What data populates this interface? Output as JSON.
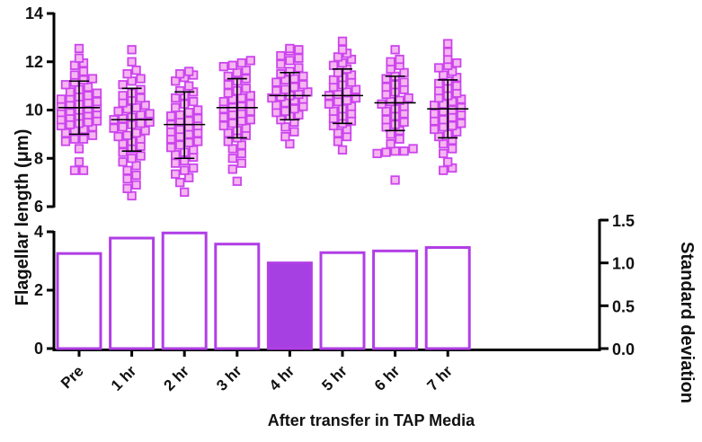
{
  "colors": {
    "marker_edge": "#cc44ee",
    "marker_fill": "#f6b6f0",
    "bar_edge": "#b13ee6",
    "bar_highlight_fill": "#a640e2",
    "axis": "#000000"
  },
  "chart_data": [
    {
      "type": "scatter",
      "subtype": "dot-plot with mean and SD error bars",
      "categories": [
        "Pre",
        "1 hr",
        "2 hr",
        "3 hr",
        "4 hr",
        "5 hr",
        "6 hr",
        "7 hr"
      ],
      "ylim": [
        6,
        14
      ],
      "yticks": [
        6,
        8,
        10,
        12,
        14
      ],
      "ylabel": "Flagellar length (µm)",
      "marker": "square",
      "summary": [
        {
          "category": "Pre",
          "mean": 10.1,
          "sd_low": 9.0,
          "sd_high": 11.2
        },
        {
          "category": "1 hr",
          "mean": 9.6,
          "sd_low": 8.3,
          "sd_high": 10.9
        },
        {
          "category": "2 hr",
          "mean": 9.4,
          "sd_low": 8.0,
          "sd_high": 10.75
        },
        {
          "category": "3 hr",
          "mean": 10.1,
          "sd_low": 8.85,
          "sd_high": 11.3
        },
        {
          "category": "4 hr",
          "mean": 10.6,
          "sd_low": 9.6,
          "sd_high": 11.55
        },
        {
          "category": "5 hr",
          "mean": 10.6,
          "sd_low": 9.45,
          "sd_high": 11.7
        },
        {
          "category": "6 hr",
          "mean": 10.3,
          "sd_low": 9.15,
          "sd_high": 11.4
        },
        {
          "category": "7 hr",
          "mean": 10.05,
          "sd_low": 8.85,
          "sd_high": 11.25
        }
      ],
      "points": [
        {
          "category": "Pre",
          "values": [
            12.55,
            12.15,
            11.95,
            11.85,
            11.6,
            11.45,
            11.3,
            11.25,
            11.15,
            11.05,
            10.95,
            10.85,
            10.75,
            10.7,
            10.6,
            10.55,
            10.5,
            10.45,
            10.35,
            10.3,
            10.25,
            10.2,
            10.15,
            10.1,
            10.05,
            10.0,
            9.95,
            9.9,
            9.85,
            9.8,
            9.75,
            9.7,
            9.6,
            9.55,
            9.5,
            9.45,
            9.4,
            9.35,
            9.3,
            9.2,
            9.15,
            9.05,
            8.95,
            8.8,
            8.8,
            8.7,
            8.4,
            7.85,
            7.5,
            7.5
          ]
        },
        {
          "category": "1 hr",
          "values": [
            12.5,
            12.0,
            11.65,
            11.5,
            11.3,
            11.2,
            11.05,
            10.85,
            10.7,
            10.6,
            10.5,
            10.4,
            10.3,
            10.2,
            10.1,
            10.05,
            9.95,
            9.85,
            9.8,
            9.7,
            9.65,
            9.6,
            9.5,
            9.45,
            9.4,
            9.3,
            9.25,
            9.15,
            9.05,
            8.95,
            8.9,
            8.8,
            8.7,
            8.6,
            8.5,
            8.4,
            8.25,
            8.1,
            8.0,
            7.85,
            7.7,
            7.5,
            7.3,
            7.15,
            6.9,
            6.75,
            6.45
          ]
        },
        {
          "category": "2 hr",
          "values": [
            11.6,
            11.5,
            11.45,
            11.35,
            11.2,
            11.0,
            10.8,
            10.75,
            10.6,
            10.5,
            10.35,
            10.25,
            10.1,
            10.0,
            9.9,
            9.8,
            9.75,
            9.65,
            9.55,
            9.5,
            9.4,
            9.35,
            9.3,
            9.2,
            9.1,
            9.05,
            9.0,
            8.9,
            8.8,
            8.7,
            8.65,
            8.55,
            8.45,
            8.35,
            8.25,
            8.15,
            8.05,
            7.9,
            7.8,
            7.6,
            7.5,
            7.35,
            7.2,
            7.0,
            6.6
          ]
        },
        {
          "category": "3 hr",
          "values": [
            12.05,
            11.95,
            11.85,
            11.8,
            11.65,
            11.55,
            11.4,
            11.3,
            11.2,
            11.05,
            10.9,
            10.8,
            10.7,
            10.6,
            10.5,
            10.45,
            10.35,
            10.25,
            10.15,
            10.1,
            10.05,
            9.95,
            9.85,
            9.8,
            9.7,
            9.6,
            9.55,
            9.45,
            9.35,
            9.25,
            9.15,
            9.05,
            8.95,
            8.85,
            8.7,
            8.55,
            8.4,
            8.2,
            8.0,
            7.8,
            7.55,
            7.05
          ]
        },
        {
          "category": "4 hr",
          "values": [
            12.55,
            12.5,
            12.45,
            12.25,
            12.15,
            12.05,
            11.9,
            11.75,
            11.6,
            11.5,
            11.4,
            11.3,
            11.25,
            11.15,
            11.05,
            10.95,
            10.85,
            10.8,
            10.75,
            10.65,
            10.6,
            10.55,
            10.5,
            10.45,
            10.4,
            10.3,
            10.2,
            10.15,
            10.05,
            9.95,
            9.9,
            9.8,
            9.75,
            9.6,
            9.5,
            9.3,
            9.1,
            8.9,
            8.6
          ]
        },
        {
          "category": "5 hr",
          "values": [
            12.85,
            12.5,
            12.35,
            12.2,
            12.1,
            11.95,
            11.85,
            11.7,
            11.55,
            11.45,
            11.35,
            11.25,
            11.15,
            11.05,
            10.95,
            10.85,
            10.75,
            10.65,
            10.6,
            10.5,
            10.4,
            10.35,
            10.25,
            10.15,
            10.05,
            9.95,
            9.85,
            9.75,
            9.65,
            9.55,
            9.45,
            9.35,
            9.2,
            9.05,
            8.9,
            8.7,
            8.35
          ]
        },
        {
          "category": "6 hr",
          "values": [
            12.5,
            12.1,
            12.0,
            11.85,
            11.7,
            11.55,
            11.4,
            11.3,
            11.15,
            11.05,
            10.95,
            10.85,
            10.75,
            10.65,
            10.5,
            10.4,
            10.35,
            10.25,
            10.15,
            10.05,
            9.95,
            9.85,
            9.75,
            9.6,
            9.5,
            9.4,
            9.3,
            9.15,
            9.0,
            8.8,
            8.6,
            8.4,
            8.3,
            8.3,
            8.25,
            8.2,
            7.1
          ]
        },
        {
          "category": "7 hr",
          "values": [
            12.75,
            12.4,
            12.1,
            11.95,
            11.85,
            11.75,
            11.6,
            11.45,
            11.35,
            11.2,
            11.1,
            11.0,
            10.9,
            10.8,
            10.7,
            10.6,
            10.5,
            10.45,
            10.35,
            10.25,
            10.2,
            10.1,
            10.0,
            9.95,
            9.85,
            9.8,
            9.7,
            9.6,
            9.55,
            9.45,
            9.35,
            9.3,
            9.2,
            9.1,
            9.0,
            8.9,
            8.75,
            8.6,
            8.4,
            8.2,
            7.85,
            7.6,
            7.5
          ]
        }
      ]
    },
    {
      "type": "bar",
      "categories": [
        "Pre",
        "1 hr",
        "2 hr",
        "3 hr",
        "4 hr",
        "5 hr",
        "6 hr",
        "7 hr"
      ],
      "values": [
        1.11,
        1.29,
        1.35,
        1.22,
        1.0,
        1.12,
        1.14,
        1.18
      ],
      "highlighted_category": "4 hr",
      "ylim_right": [
        0,
        1.5
      ],
      "yticks_right": [
        "0.0",
        "0.5",
        "1.0",
        "1.5"
      ],
      "ylabel_right": "Standard deviation",
      "ylim_left": [
        0,
        4
      ],
      "yticks_left": [
        "0",
        "2",
        "4"
      ],
      "xlabel": "After transfer in TAP Media"
    }
  ],
  "labels": {
    "left_ylabel": "Flagellar length (μm)",
    "right_ylabel": "Standard deviation",
    "xlabel": "After transfer in TAP Media",
    "top_yticks": [
      "6",
      "8",
      "10",
      "12",
      "14"
    ],
    "bottom_left_yticks": [
      "0",
      "2",
      "4"
    ],
    "bottom_right_yticks": [
      "0.0",
      "0.5",
      "1.0",
      "1.5"
    ],
    "categories": [
      "Pre",
      "1 hr",
      "2 hr",
      "3 hr",
      "4 hr",
      "5 hr",
      "6 hr",
      "7 hr"
    ]
  }
}
